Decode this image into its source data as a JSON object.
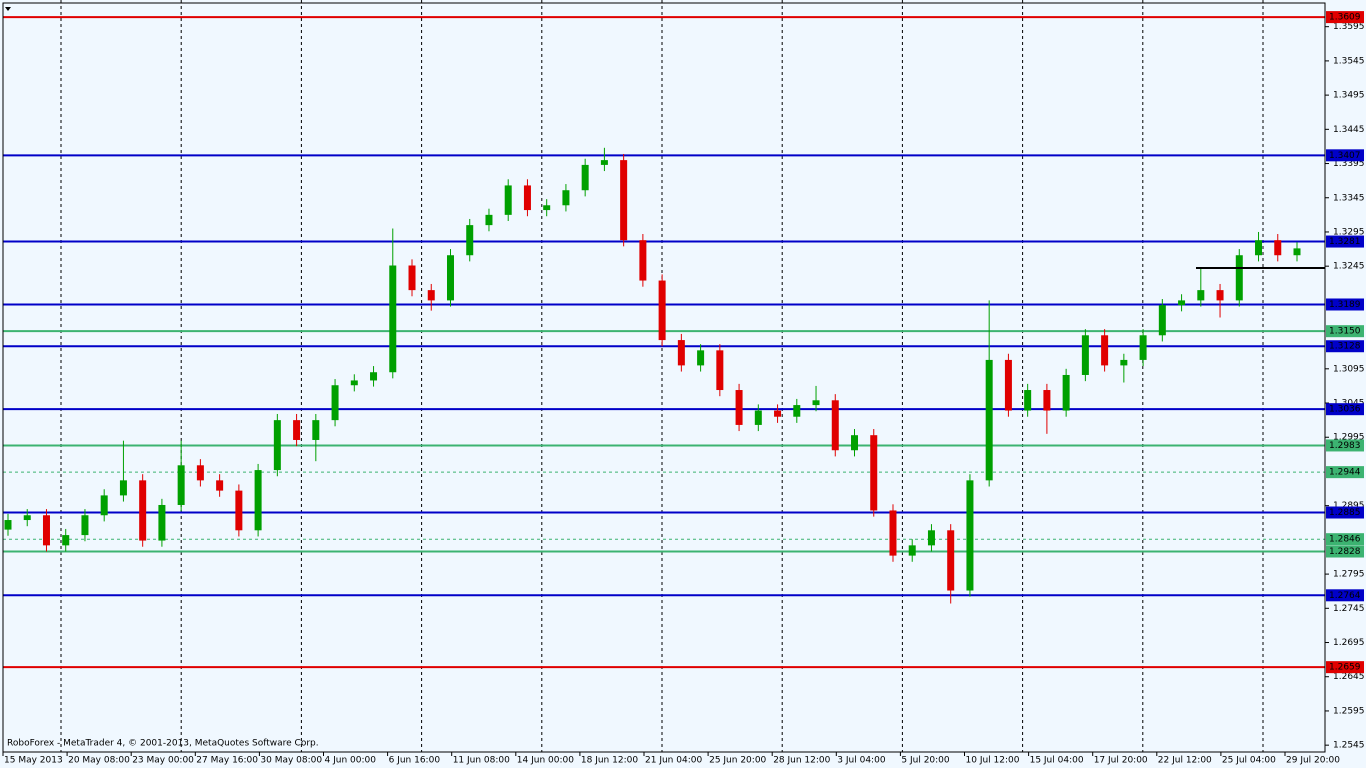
{
  "footer_text": "RoboForex - MetaTrader 4, © 2001-2013, MetaQuotes Software Corp.",
  "chart_data": {
    "type": "candlestick",
    "up_color": "#00a000",
    "down_color": "#e00000",
    "grid": true,
    "ylim": [
      1.2535,
      1.3634
    ],
    "yticks": [
      1.3595,
      1.3545,
      1.3495,
      1.3445,
      1.3395,
      1.3345,
      1.3295,
      1.3245,
      1.3095,
      1.3045,
      1.2995,
      1.2895,
      1.2795,
      1.2745,
      1.2695,
      1.2645,
      1.2595,
      1.2545
    ],
    "categories": [
      "15 May 2013",
      "20 May 08:00",
      "23 May 00:00",
      "27 May 16:00",
      "30 May 08:00",
      "4 Jun 00:00",
      "6 Jun 16:00",
      "11 Jun 08:00",
      "14 Jun 00:00",
      "18 Jun 12:00",
      "21 Jun 04:00",
      "25 Jun 20:00",
      "28 Jun 12:00",
      "3 Jul 04:00",
      "5 Jul 20:00",
      "10 Jul 12:00",
      "15 Jul 04:00",
      "17 Jul 20:00",
      "22 Jul 12:00",
      "25 Jul 04:00",
      "29 Jul 20:00"
    ],
    "levels": [
      {
        "value": 1.3609,
        "color": "#e00000",
        "dashed": false
      },
      {
        "value": 1.3407,
        "color": "#0000c8",
        "dashed": false
      },
      {
        "value": 1.3281,
        "color": "#0000c8",
        "dashed": false
      },
      {
        "value": 1.3189,
        "color": "#0000c8",
        "dashed": false
      },
      {
        "value": 1.315,
        "label": "1.3150",
        "color": "#3cb371",
        "dashed": false
      },
      {
        "value": 1.3128,
        "color": "#0000c8",
        "dashed": false
      },
      {
        "value": 1.3036,
        "color": "#0000c8",
        "dashed": false
      },
      {
        "value": 1.2983,
        "color": "#3cb371",
        "dashed": false
      },
      {
        "value": 1.2944,
        "color": "#3cb371",
        "dashed": true
      },
      {
        "value": 1.2885,
        "color": "#0000c8",
        "dashed": false
      },
      {
        "value": 1.2846,
        "color": "#3cb371",
        "dashed": true
      },
      {
        "value": 1.2828,
        "color": "#3cb371",
        "dashed": false
      },
      {
        "value": 1.2764,
        "color": "#0000c8",
        "dashed": false
      },
      {
        "value": 1.2659,
        "color": "#e00000",
        "dashed": false
      }
    ],
    "ohlc": [
      [
        1.286,
        1.2883,
        1.2851,
        1.2874
      ],
      [
        1.2874,
        1.289,
        1.2865,
        1.2881
      ],
      [
        1.2881,
        1.289,
        1.2828,
        1.2837
      ],
      [
        1.2837,
        1.2861,
        1.2828,
        1.2852
      ],
      [
        1.2852,
        1.289,
        1.2843,
        1.2881
      ],
      [
        1.2881,
        1.2919,
        1.2872,
        1.291
      ],
      [
        1.291,
        1.299,
        1.2901,
        1.2932
      ],
      [
        1.2932,
        1.2941,
        1.2835,
        1.2844
      ],
      [
        1.2844,
        1.2905,
        1.2835,
        1.2896
      ],
      [
        1.2896,
        1.299,
        1.2887,
        1.2954
      ],
      [
        1.2954,
        1.2963,
        1.2923,
        1.2932
      ],
      [
        1.2932,
        1.2941,
        1.2908,
        1.2917
      ],
      [
        1.2917,
        1.2926,
        1.285,
        1.2859
      ],
      [
        1.2859,
        1.2956,
        1.285,
        1.2947
      ],
      [
        1.2947,
        1.3029,
        1.2938,
        1.302
      ],
      [
        1.302,
        1.3029,
        1.2982,
        1.2991
      ],
      [
        1.2991,
        1.3029,
        1.296,
        1.302
      ],
      [
        1.302,
        1.308,
        1.3011,
        1.3071
      ],
      [
        1.3071,
        1.3087,
        1.3062,
        1.3078
      ],
      [
        1.3078,
        1.3099,
        1.3069,
        1.309
      ],
      [
        1.309,
        1.33,
        1.3081,
        1.3246
      ],
      [
        1.3246,
        1.3255,
        1.3201,
        1.321
      ],
      [
        1.321,
        1.3219,
        1.318,
        1.3195
      ],
      [
        1.3195,
        1.327,
        1.3186,
        1.3261
      ],
      [
        1.3261,
        1.3314,
        1.3252,
        1.3305
      ],
      [
        1.3305,
        1.3329,
        1.3296,
        1.332
      ],
      [
        1.332,
        1.3372,
        1.3311,
        1.3363
      ],
      [
        1.3363,
        1.3372,
        1.3318,
        1.3327
      ],
      [
        1.3327,
        1.3343,
        1.3318,
        1.3334
      ],
      [
        1.3334,
        1.3365,
        1.3325,
        1.3356
      ],
      [
        1.3356,
        1.3402,
        1.3347,
        1.3393
      ],
      [
        1.3393,
        1.3418,
        1.3384,
        1.34
      ],
      [
        1.34,
        1.3409,
        1.3274,
        1.3283
      ],
      [
        1.3283,
        1.3292,
        1.3215,
        1.3224
      ],
      [
        1.3224,
        1.3233,
        1.3128,
        1.3137
      ],
      [
        1.3137,
        1.3146,
        1.3091,
        1.31
      ],
      [
        1.31,
        1.3131,
        1.3091,
        1.3122
      ],
      [
        1.3122,
        1.3131,
        1.3055,
        1.3064
      ],
      [
        1.3064,
        1.3073,
        1.3004,
        1.3013
      ],
      [
        1.3013,
        1.3043,
        1.3004,
        1.3034
      ],
      [
        1.3034,
        1.3043,
        1.3016,
        1.3025
      ],
      [
        1.3025,
        1.3051,
        1.3016,
        1.3042
      ],
      [
        1.3042,
        1.307,
        1.3033,
        1.3049
      ],
      [
        1.3049,
        1.3058,
        1.2967,
        1.2976
      ],
      [
        1.2976,
        1.3007,
        1.2967,
        1.2998
      ],
      [
        1.2998,
        1.3007,
        1.2879,
        1.2888
      ],
      [
        1.2888,
        1.2897,
        1.2813,
        1.2822
      ],
      [
        1.2822,
        1.2846,
        1.2813,
        1.2837
      ],
      [
        1.2837,
        1.2868,
        1.2828,
        1.2859
      ],
      [
        1.2859,
        1.2868,
        1.2752,
        1.2771
      ],
      [
        1.2771,
        1.2941,
        1.2762,
        1.2932
      ],
      [
        1.2932,
        1.3195,
        1.2923,
        1.3108
      ],
      [
        1.3108,
        1.3117,
        1.3025,
        1.3034
      ],
      [
        1.3034,
        1.3073,
        1.3025,
        1.3064
      ],
      [
        1.3064,
        1.3073,
        1.3,
        1.3034
      ],
      [
        1.3034,
        1.3095,
        1.3025,
        1.3086
      ],
      [
        1.3086,
        1.3153,
        1.3077,
        1.3144
      ],
      [
        1.3144,
        1.3153,
        1.3091,
        1.31
      ],
      [
        1.31,
        1.3117,
        1.3075,
        1.3108
      ],
      [
        1.3108,
        1.3153,
        1.3099,
        1.3144
      ],
      [
        1.3144,
        1.3197,
        1.3135,
        1.3188
      ],
      [
        1.3188,
        1.3204,
        1.3179,
        1.3195
      ],
      [
        1.3195,
        1.3243,
        1.3186,
        1.321
      ],
      [
        1.321,
        1.3219,
        1.317,
        1.3195
      ],
      [
        1.3195,
        1.327,
        1.3186,
        1.3261
      ],
      [
        1.3261,
        1.3295,
        1.3252,
        1.3283
      ],
      [
        1.3283,
        1.3292,
        1.3252,
        1.3261
      ],
      [
        1.3261,
        1.328,
        1.3252,
        1.3271
      ]
    ]
  }
}
